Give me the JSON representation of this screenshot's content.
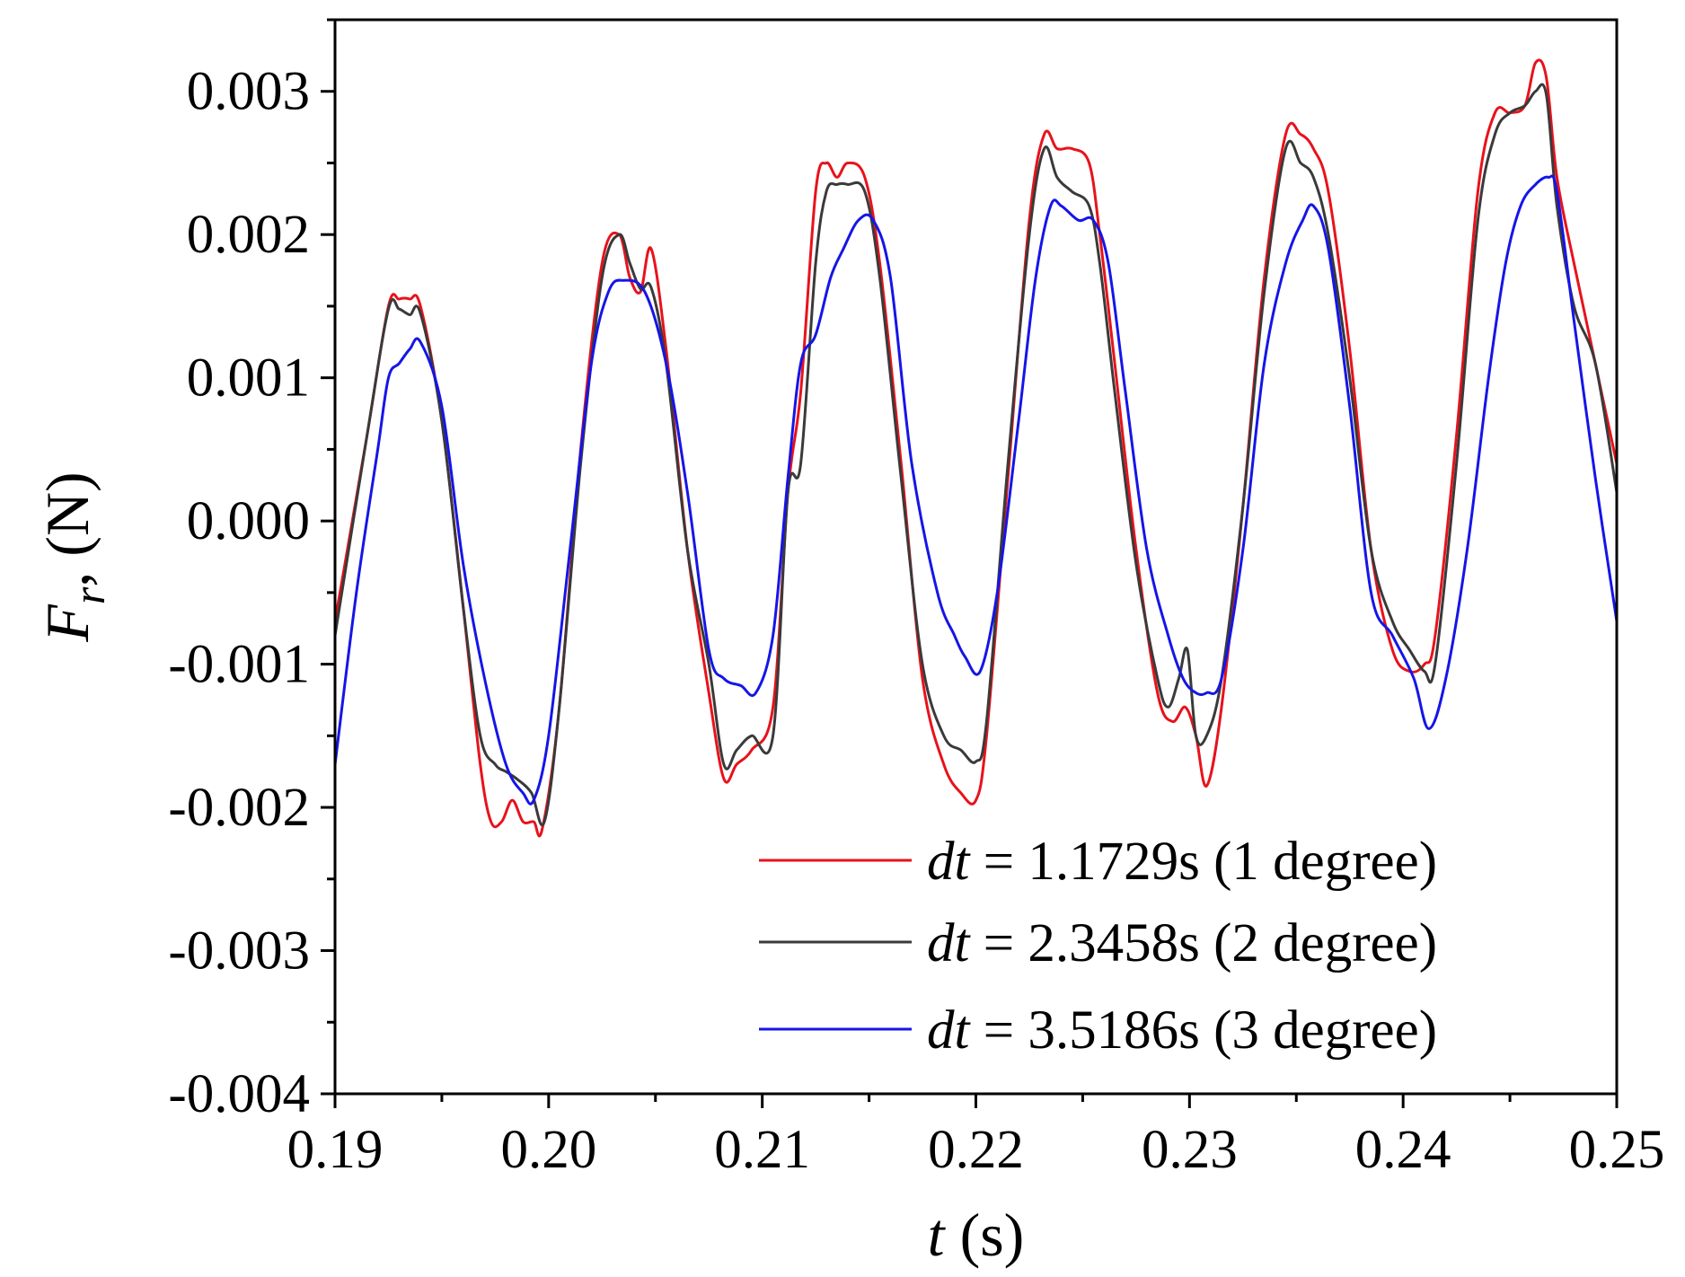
{
  "chart_data": {
    "type": "line",
    "title": "",
    "xlabel": {
      "var": "t",
      "unit": "(s)"
    },
    "ylabel": {
      "var": "F",
      "sub": "r",
      "unit": "(N)"
    },
    "xlim": [
      0.19,
      0.25
    ],
    "ylim": [
      -0.004,
      0.0035
    ],
    "xticks": [
      "0.19",
      "0.20",
      "0.21",
      "0.22",
      "0.23",
      "0.24",
      "0.25"
    ],
    "yticks": [
      "-0.004",
      "-0.003",
      "-0.002",
      "-0.001",
      "0.000",
      "0.001",
      "0.002",
      "0.003"
    ],
    "legend_position": "bottom-right",
    "series": [
      {
        "name": "dt = 1.1729s (1 degree)",
        "legend": {
          "var": "dt",
          "rest": " = 1.1729s (1 degree)"
        },
        "color": "#e8121b",
        "x": [
          0.19,
          0.1915,
          0.1925,
          0.193,
          0.1935,
          0.194,
          0.195,
          0.196,
          0.1968,
          0.1973,
          0.1978,
          0.1983,
          0.1988,
          0.1993,
          0.1997,
          0.2005,
          0.2015,
          0.2025,
          0.2033,
          0.2038,
          0.2043,
          0.2048,
          0.2055,
          0.2065,
          0.2075,
          0.2082,
          0.2088,
          0.2095,
          0.2105,
          0.2112,
          0.2118,
          0.2125,
          0.213,
          0.2135,
          0.214,
          0.2148,
          0.2155,
          0.2165,
          0.2175,
          0.2185,
          0.2193,
          0.22,
          0.2205,
          0.2215,
          0.2225,
          0.2232,
          0.2238,
          0.2245,
          0.2253,
          0.2258,
          0.2265,
          0.2275,
          0.2285,
          0.2292,
          0.2298,
          0.2303,
          0.2308,
          0.2315,
          0.2325,
          0.2335,
          0.2345,
          0.2352,
          0.2358,
          0.2365,
          0.2375,
          0.2385,
          0.2395,
          0.2403,
          0.241,
          0.2415,
          0.2425,
          0.2435,
          0.2443,
          0.245,
          0.2457,
          0.2462,
          0.2467,
          0.2472,
          0.248,
          0.249,
          0.25
        ],
        "y": [
          -0.0007,
          0.0006,
          0.0015,
          0.00155,
          0.00155,
          0.0015,
          0.0007,
          -0.0006,
          -0.0017,
          -0.0021,
          -0.0021,
          -0.00195,
          -0.0021,
          -0.0021,
          -0.00215,
          -0.0013,
          0.0005,
          0.0018,
          0.002,
          0.0017,
          0.0016,
          0.0019,
          0.0012,
          -0.0002,
          -0.0012,
          -0.0018,
          -0.0017,
          -0.0016,
          -0.0013,
          0.0002,
          0.0009,
          0.0023,
          0.0025,
          0.0024,
          0.0025,
          0.0024,
          0.0018,
          0.0004,
          -0.0011,
          -0.0017,
          -0.0019,
          -0.00195,
          -0.0015,
          0.0003,
          0.0021,
          0.0027,
          0.0026,
          0.0026,
          0.0025,
          0.002,
          0.0011,
          -0.0002,
          -0.0012,
          -0.0014,
          -0.0013,
          -0.0015,
          -0.00185,
          -0.0013,
          0.0001,
          0.0017,
          0.0027,
          0.0027,
          0.0026,
          0.0023,
          0.0012,
          -0.0002,
          -0.0009,
          -0.00105,
          -0.001,
          -0.0008,
          0.0006,
          0.0023,
          0.00285,
          0.00285,
          0.0029,
          0.0032,
          0.0031,
          0.0024,
          0.0018,
          0.0011,
          0.0004
        ]
      },
      {
        "name": "dt = 2.3458s (2 degree)",
        "legend": {
          "var": "dt",
          "rest": " = 2.3458s (2 degree)"
        },
        "color": "#3a3a3a",
        "x": [
          0.19,
          0.1915,
          0.1925,
          0.193,
          0.1935,
          0.194,
          0.195,
          0.196,
          0.1968,
          0.1975,
          0.198,
          0.1985,
          0.1992,
          0.1998,
          0.2005,
          0.2015,
          0.2025,
          0.2033,
          0.2038,
          0.2043,
          0.2048,
          0.2055,
          0.2065,
          0.2075,
          0.2082,
          0.2088,
          0.2095,
          0.2105,
          0.2112,
          0.2118,
          0.2125,
          0.213,
          0.2135,
          0.214,
          0.2148,
          0.2155,
          0.2165,
          0.2175,
          0.2185,
          0.2193,
          0.22,
          0.2205,
          0.2215,
          0.2225,
          0.2232,
          0.2238,
          0.2245,
          0.2253,
          0.2258,
          0.2265,
          0.2275,
          0.2285,
          0.229,
          0.2295,
          0.2299,
          0.2303,
          0.2308,
          0.2315,
          0.2325,
          0.2335,
          0.2345,
          0.2352,
          0.2358,
          0.2365,
          0.2375,
          0.2385,
          0.2395,
          0.2403,
          0.241,
          0.2415,
          0.2425,
          0.2435,
          0.2443,
          0.245,
          0.2457,
          0.2462,
          0.2467,
          0.2472,
          0.248,
          0.249,
          0.25
        ],
        "y": [
          -0.0008,
          0.0006,
          0.00148,
          0.00148,
          0.00144,
          0.00145,
          0.0007,
          -0.0006,
          -0.0015,
          -0.0017,
          -0.00175,
          -0.0018,
          -0.0019,
          -0.0021,
          -0.0013,
          0.0004,
          0.0017,
          0.002,
          0.0018,
          0.00162,
          0.00163,
          0.0011,
          -0.0002,
          -0.001,
          -0.0017,
          -0.0016,
          -0.0015,
          -0.0015,
          0.0002,
          0.0004,
          0.0018,
          0.0023,
          0.00235,
          0.00235,
          0.0023,
          0.0017,
          0.0003,
          -0.001,
          -0.0015,
          -0.0016,
          -0.00168,
          -0.0014,
          0.0004,
          0.002,
          0.0026,
          0.0024,
          0.0023,
          0.0022,
          0.0018,
          0.0009,
          -0.0003,
          -0.0011,
          -0.0013,
          -0.0011,
          -0.0009,
          -0.0015,
          -0.0015,
          -0.0011,
          0.0001,
          0.0016,
          0.0026,
          0.0025,
          0.0024,
          0.002,
          0.001,
          -0.0002,
          -0.0007,
          -0.0009,
          -0.00105,
          -0.001,
          0.0004,
          0.0021,
          0.0027,
          0.00285,
          0.0029,
          0.003,
          0.00298,
          0.0022,
          0.0015,
          0.0011,
          0.0002
        ]
      },
      {
        "name": "dt = 3.5186s (3 degree)",
        "legend": {
          "var": "dt",
          "rest": " = 3.5186s (3 degree)"
        },
        "color": "#1515e8",
        "x": [
          0.19,
          0.191,
          0.192,
          0.1925,
          0.193,
          0.1935,
          0.194,
          0.195,
          0.196,
          0.197,
          0.198,
          0.1988,
          0.1993,
          0.2,
          0.201,
          0.202,
          0.2028,
          0.2035,
          0.2045,
          0.2055,
          0.2065,
          0.2075,
          0.2082,
          0.209,
          0.2097,
          0.2105,
          0.2112,
          0.2118,
          0.2125,
          0.2132,
          0.2138,
          0.2145,
          0.2152,
          0.216,
          0.217,
          0.2182,
          0.219,
          0.2195,
          0.2202,
          0.221,
          0.222,
          0.2228,
          0.2235,
          0.224,
          0.2248,
          0.2255,
          0.2262,
          0.227,
          0.228,
          0.229,
          0.2297,
          0.2303,
          0.2308,
          0.2315,
          0.2325,
          0.2335,
          0.2345,
          0.2353,
          0.2358,
          0.2365,
          0.2375,
          0.2385,
          0.2395,
          0.2405,
          0.2412,
          0.242,
          0.243,
          0.244,
          0.2448,
          0.2455,
          0.2462,
          0.2468,
          0.2472,
          0.248,
          0.249,
          0.25
        ],
        "y": [
          -0.0017,
          -0.0005,
          0.0005,
          0.001,
          0.0011,
          0.0012,
          0.00125,
          0.0008,
          -0.0003,
          -0.0011,
          -0.0017,
          -0.0019,
          -0.00195,
          -0.0015,
          -0.0002,
          0.0011,
          0.0016,
          0.00168,
          0.0016,
          0.0011,
          0.0002,
          -0.0009,
          -0.0011,
          -0.00115,
          -0.0012,
          -0.0008,
          0.0003,
          0.0011,
          0.0013,
          0.0017,
          0.0019,
          0.0021,
          0.0021,
          0.0017,
          0.0004,
          -0.0005,
          -0.0008,
          -0.00095,
          -0.00105,
          -0.0005,
          0.0007,
          0.0017,
          0.0022,
          0.0022,
          0.0021,
          0.0021,
          0.0018,
          0.0009,
          -0.0002,
          -0.0008,
          -0.0011,
          -0.0012,
          -0.0012,
          -0.0011,
          -0.0002,
          0.0011,
          0.0018,
          0.0021,
          0.0022,
          0.0019,
          0.0008,
          -0.0005,
          -0.0008,
          -0.0011,
          -0.00145,
          -0.0011,
          -0.0002,
          0.001,
          0.0018,
          0.0022,
          0.00235,
          0.0024,
          0.0023,
          0.0014,
          0.0003,
          -0.0007
        ]
      }
    ]
  }
}
